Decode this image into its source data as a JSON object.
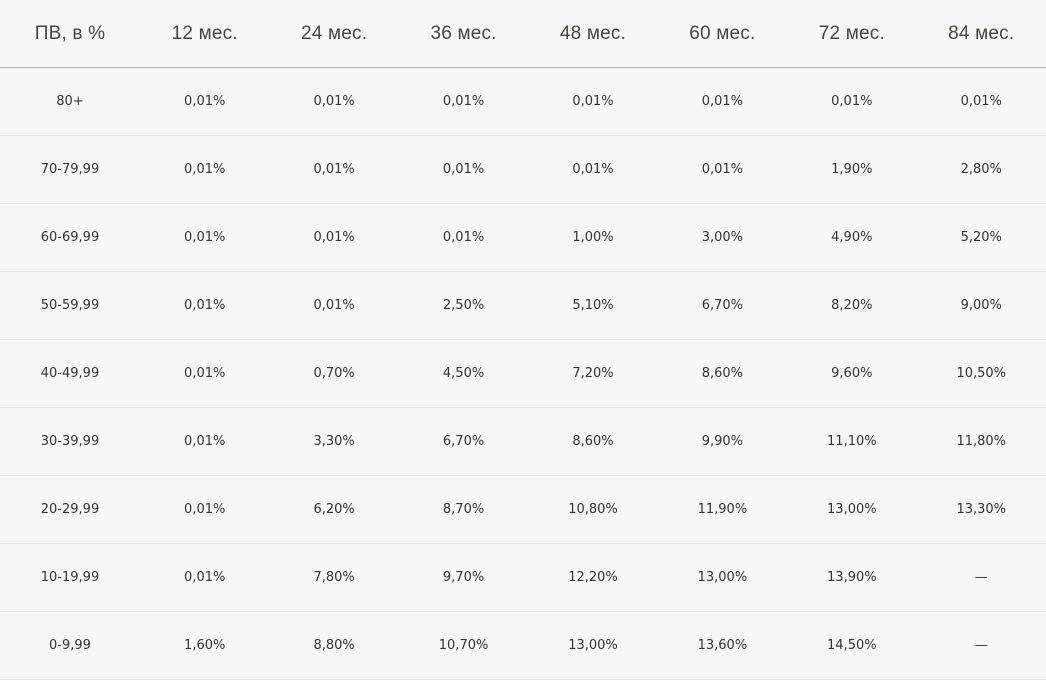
{
  "table": {
    "headers": [
      "ПВ, в %",
      "12 мес.",
      "24 мес.",
      "36 мес.",
      "48 мес.",
      "60 мес.",
      "72 мес.",
      "84 мес."
    ],
    "rows": [
      [
        "80+",
        "0,01%",
        "0,01%",
        "0,01%",
        "0,01%",
        "0,01%",
        "0,01%",
        "0,01%"
      ],
      [
        "70-79,99",
        "0,01%",
        "0,01%",
        "0,01%",
        "0,01%",
        "0,01%",
        "1,90%",
        "2,80%"
      ],
      [
        "60-69,99",
        "0,01%",
        "0,01%",
        "0,01%",
        "1,00%",
        "3,00%",
        "4,90%",
        "5,20%"
      ],
      [
        "50-59,99",
        "0,01%",
        "0,01%",
        "2,50%",
        "5,10%",
        "6,70%",
        "8,20%",
        "9,00%"
      ],
      [
        "40-49,99",
        "0,01%",
        "0,70%",
        "4,50%",
        "7,20%",
        "8,60%",
        "9,60%",
        "10,50%"
      ],
      [
        "30-39,99",
        "0,01%",
        "3,30%",
        "6,70%",
        "8,60%",
        "9,90%",
        "11,10%",
        "11,80%"
      ],
      [
        "20-29,99",
        "0,01%",
        "6,20%",
        "8,70%",
        "10,80%",
        "11,90%",
        "13,00%",
        "13,30%"
      ],
      [
        "10-19,99",
        "0,01%",
        "7,80%",
        "9,70%",
        "12,20%",
        "13,00%",
        "13,90%",
        "—"
      ],
      [
        "0-9,99",
        "1,60%",
        "8,80%",
        "10,70%",
        "13,00%",
        "13,60%",
        "14,50%",
        "—"
      ]
    ]
  }
}
